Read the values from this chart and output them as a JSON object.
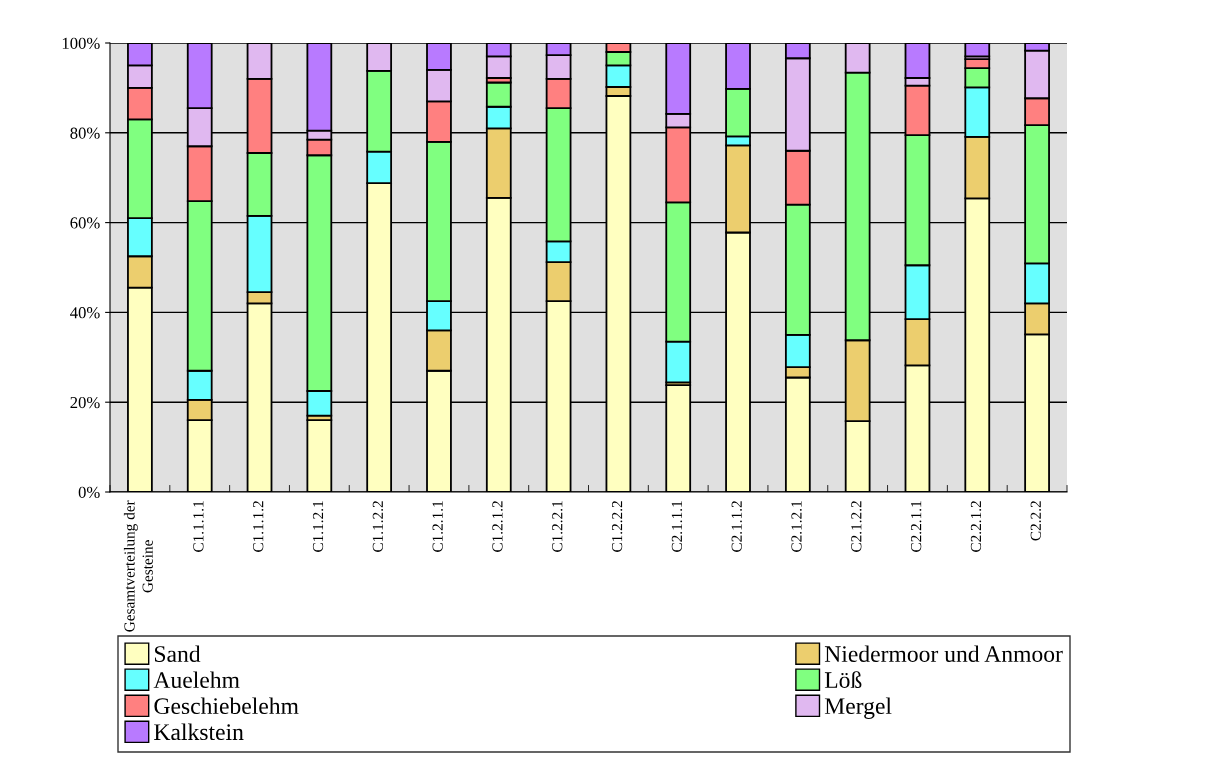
{
  "chart_data": {
    "type": "bar",
    "stacked": true,
    "categories": [
      "Gesamtverteilung der Gesteine",
      "C1.1.1.1",
      "C1.1.1.2",
      "C1.1.2.1",
      "C1.1.2.2",
      "C1.2.1.1",
      "C1.2.1.2",
      "C1.2.2.1",
      "C1.2.2.2",
      "C2.1.1.1",
      "C2.1.1.2",
      "C2.1.2.1",
      "C2.1.2.2",
      "C2.2.1.1",
      "C2.2.1.2",
      "C2.2.2"
    ],
    "series": [
      {
        "name": "Sand",
        "color": "#ffffc0",
        "values": [
          45.5,
          16,
          42,
          16,
          68.8,
          27,
          65.5,
          42.5,
          88.2,
          23.8,
          57.8,
          25.5,
          15.8,
          28.2,
          65.4,
          35.1
        ]
      },
      {
        "name": "Niedermoor und Anmoor",
        "color": "#ecce6e",
        "values": [
          7,
          4.5,
          2.5,
          1,
          0,
          9,
          15.5,
          8.7,
          2,
          0.6,
          19.4,
          2.3,
          18,
          10.3,
          13.7,
          6.9
        ]
      },
      {
        "name": "Auelehm",
        "color": "#66ffff",
        "values": [
          8.5,
          6.5,
          17,
          5.5,
          7,
          6.5,
          4.8,
          4.6,
          4.8,
          9.1,
          2,
          7.2,
          0,
          12,
          11,
          8.9
        ]
      },
      {
        "name": "Löß",
        "color": "#80ff80",
        "values": [
          22,
          37.8,
          14,
          52.5,
          18,
          35.5,
          5.4,
          29.7,
          3,
          31,
          10.6,
          29,
          59.6,
          29,
          4.3,
          30.8
        ]
      },
      {
        "name": "Geschiebelehm",
        "color": "#ff8080",
        "values": [
          7,
          12.2,
          16.5,
          3.5,
          0,
          9,
          1,
          6.5,
          2,
          16.7,
          0,
          12,
          0,
          11,
          2,
          6
        ]
      },
      {
        "name": "Mergel",
        "color": "#e0b8f0",
        "values": [
          5,
          8.5,
          8,
          2,
          6.2,
          7,
          4.8,
          5.3,
          0,
          3,
          0,
          20.6,
          6.6,
          1.7,
          0.6,
          10.6
        ]
      },
      {
        "name": "Kalkstein",
        "color": "#b87aff",
        "values": [
          5,
          14.5,
          0,
          19.5,
          0,
          6,
          3,
          2.7,
          0,
          15.8,
          10.2,
          3.4,
          0,
          7.8,
          3,
          1.7
        ]
      }
    ],
    "ylim": [
      0,
      100
    ],
    "yticks": [
      {
        "value": 0,
        "label": "0%"
      },
      {
        "value": 20,
        "label": "20%"
      },
      {
        "value": 40,
        "label": "40%"
      },
      {
        "value": 60,
        "label": "60%"
      },
      {
        "value": 80,
        "label": "80%"
      },
      {
        "value": 100,
        "label": "100%"
      }
    ],
    "grid": "y",
    "legend": "bottom"
  }
}
